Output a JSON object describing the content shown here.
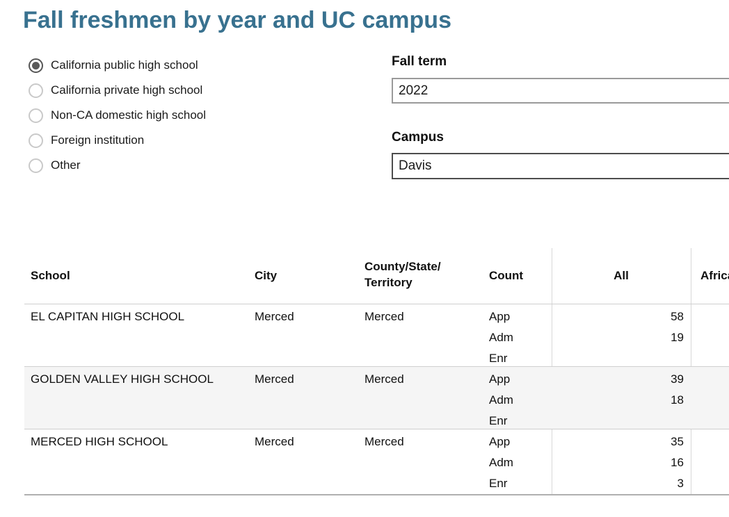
{
  "title": "Fall freshmen by year and UC campus",
  "colors": {
    "title_accent": "#38718F",
    "alt_row_bg": "#F5F5F5"
  },
  "icons": {
    "dropdown": "chevron-down-icon",
    "radio": "radio-circle-icon"
  },
  "school_type_options": [
    {
      "label": "California public high school",
      "selected": true
    },
    {
      "label": "California private high school",
      "selected": false
    },
    {
      "label": "Non-CA domestic high school",
      "selected": false
    },
    {
      "label": "Foreign institution",
      "selected": false
    },
    {
      "label": "Other",
      "selected": false
    }
  ],
  "fall_term": {
    "label": "Fall term",
    "value": "2022"
  },
  "campus": {
    "label": "Campus",
    "value": "Davis"
  },
  "table": {
    "columns": [
      {
        "label": "School"
      },
      {
        "label": "City"
      },
      {
        "label": "County/State/",
        "label2": "Territory"
      },
      {
        "label": "Count"
      },
      {
        "label": "All"
      },
      {
        "label": "African American"
      }
    ],
    "rows": [
      {
        "school": "EL CAPITAN HIGH SCHOOL",
        "city": "Merced",
        "county": "Merced",
        "counts": [
          {
            "label": "App",
            "all": "58",
            "african_american": ""
          },
          {
            "label": "Adm",
            "all": "19",
            "african_american": ""
          },
          {
            "label": "Enr",
            "all": "",
            "african_american": ""
          }
        ]
      },
      {
        "school": "GOLDEN VALLEY HIGH SCHOOL",
        "city": "Merced",
        "county": "Merced",
        "counts": [
          {
            "label": "App",
            "all": "39",
            "african_american": ""
          },
          {
            "label": "Adm",
            "all": "18",
            "african_american": ""
          },
          {
            "label": "Enr",
            "all": "",
            "african_american": ""
          }
        ]
      },
      {
        "school": "MERCED HIGH SCHOOL",
        "city": "Merced",
        "county": "Merced",
        "counts": [
          {
            "label": "App",
            "all": "35",
            "african_american": ""
          },
          {
            "label": "Adm",
            "all": "16",
            "african_american": ""
          },
          {
            "label": "Enr",
            "all": "3",
            "african_american": ""
          }
        ]
      }
    ]
  }
}
